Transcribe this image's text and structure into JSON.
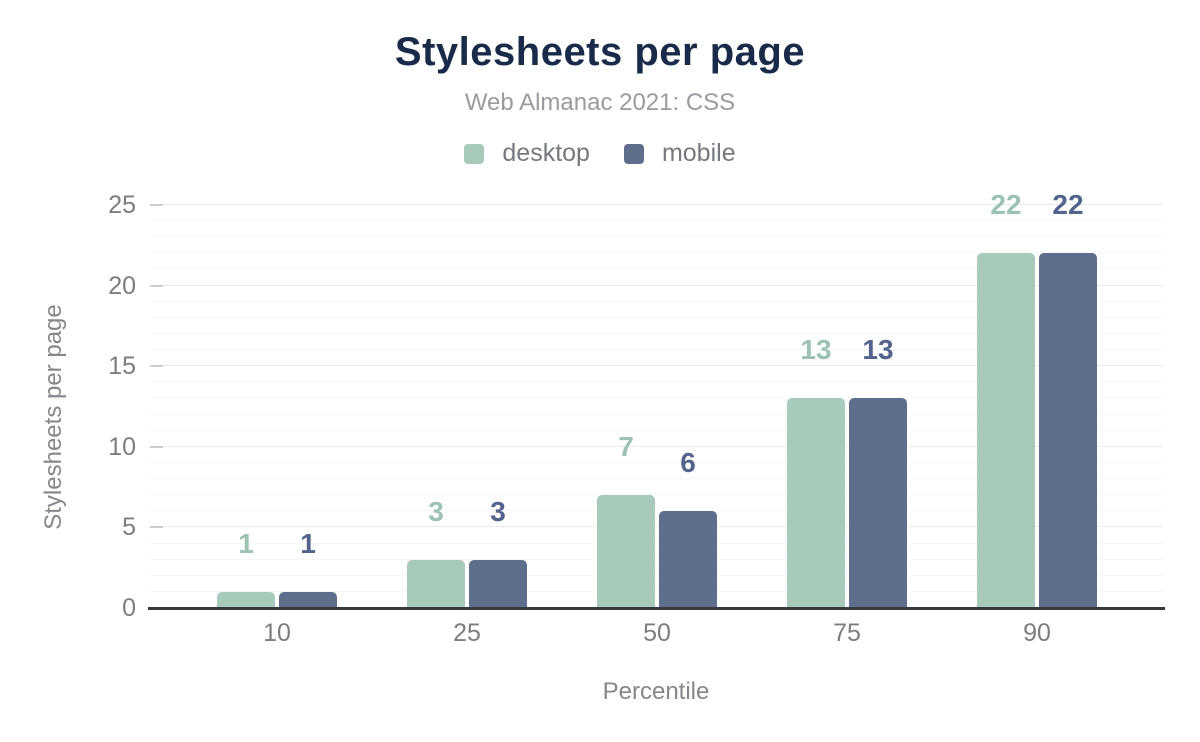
{
  "chart_data": {
    "type": "bar",
    "title": "Stylesheets per page",
    "subtitle": "Web Almanac 2021: CSS",
    "xlabel": "Percentile",
    "ylabel": "Stylesheets per page",
    "categories": [
      "10",
      "25",
      "50",
      "75",
      "90"
    ],
    "series": [
      {
        "name": "desktop",
        "color": "#a8cabb",
        "label_color": "#9cc2b1",
        "values": [
          1,
          3,
          7,
          13,
          22
        ]
      },
      {
        "name": "mobile",
        "color": "#5f6e8c",
        "label_color": "#54638b",
        "values": [
          1,
          3,
          6,
          13,
          22
        ]
      }
    ],
    "ylim": [
      0,
      25
    ],
    "yticks": [
      0,
      5,
      10,
      15,
      20,
      25
    ],
    "grid": true,
    "grid_minor_step": 1,
    "grid_major_step": 5,
    "legend_position": "top",
    "bar_style": "rounded-top"
  },
  "colors": {
    "background": "#ffffff",
    "title": "#1a2b4a",
    "subtitle": "#9a9ba0",
    "legend_text": "#75797f",
    "axis_tick_text": "#7d7d7d",
    "axis_title_text": "#85878c",
    "gridline_minor": "#f7f7f7",
    "gridline_major": "#ebebeb",
    "tick_mark": "#cccccc",
    "baseline": "#37393e"
  }
}
